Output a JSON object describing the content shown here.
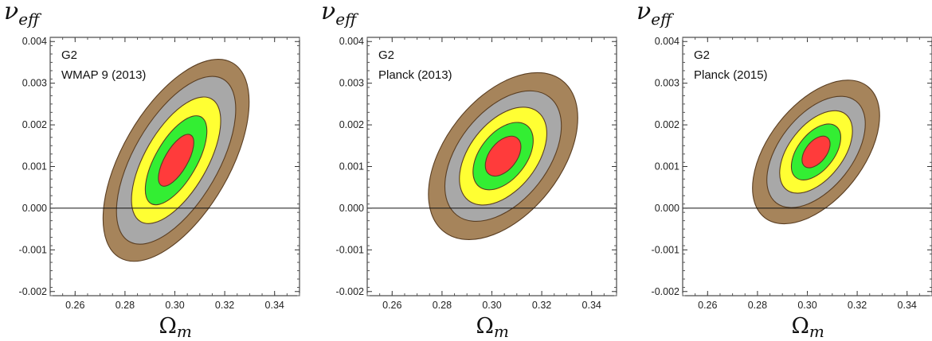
{
  "chart_data": [
    {
      "type": "contour",
      "ylabel": "ν",
      "ylabel_sub": "eff",
      "xlabel": "Ω",
      "xlabel_sub": "m",
      "annotation_lines": [
        "G2",
        "WMAP 9 (2013)"
      ],
      "xlim": [
        0.25,
        0.35
      ],
      "ylim": [
        -0.0021,
        0.0041
      ],
      "xticks": [
        "0.26",
        "0.28",
        "0.30",
        "0.32",
        "0.34"
      ],
      "xtick_values": [
        0.26,
        0.28,
        0.3,
        0.32,
        0.34
      ],
      "yticks": [
        "0.004",
        "0.003",
        "0.002",
        "0.001",
        "0.000",
        "-0.001",
        "-0.002"
      ],
      "ytick_values": [
        0.004,
        0.003,
        0.002,
        0.001,
        0.0,
        -0.001,
        -0.002
      ],
      "reference_line_y": 0.0,
      "best_fit": {
        "x": 0.3005,
        "y": 0.00115
      },
      "rotation_deg": -60,
      "contours": [
        {
          "level": 5,
          "color": "#a6845b",
          "semi_major": 0.0027,
          "semi_minor": 0.0215
        },
        {
          "level": 4,
          "color": "#a8a8a8",
          "semi_major": 0.00225,
          "semi_minor": 0.017
        },
        {
          "level": 3,
          "color": "#ffff33",
          "semi_major": 0.0017,
          "semi_minor": 0.0125
        },
        {
          "level": 2,
          "color": "#33ee33",
          "semi_major": 0.0012,
          "semi_minor": 0.0083
        },
        {
          "level": 1,
          "color": "#ff3b3b",
          "semi_major": 0.0007,
          "semi_minor": 0.0046
        }
      ]
    },
    {
      "type": "contour",
      "ylabel": "ν",
      "ylabel_sub": "eff",
      "xlabel": "Ω",
      "xlabel_sub": "m",
      "annotation_lines": [
        "G2",
        "Planck (2013)"
      ],
      "xlim": [
        0.25,
        0.35
      ],
      "ylim": [
        -0.0021,
        0.0041
      ],
      "xticks": [
        "0.26",
        "0.28",
        "0.30",
        "0.32",
        "0.34"
      ],
      "xtick_values": [
        0.26,
        0.28,
        0.3,
        0.32,
        0.34
      ],
      "yticks": [
        "0.004",
        "0.003",
        "0.002",
        "0.001",
        "0.000",
        "-0.001",
        "-0.002"
      ],
      "ytick_values": [
        0.004,
        0.003,
        0.002,
        0.001,
        0.0,
        -0.001,
        -0.002
      ],
      "reference_line_y": 0.0,
      "best_fit": {
        "x": 0.3045,
        "y": 0.00125
      },
      "rotation_deg": -52,
      "contours": [
        {
          "level": 5,
          "color": "#a6845b",
          "semi_major": 0.0023,
          "semi_minor": 0.0232
        },
        {
          "level": 4,
          "color": "#a8a8a8",
          "semi_major": 0.0018,
          "semi_minor": 0.018
        },
        {
          "level": 3,
          "color": "#ffff33",
          "semi_major": 0.00135,
          "semi_minor": 0.0135
        },
        {
          "level": 2,
          "color": "#33ee33",
          "semi_major": 0.00093,
          "semi_minor": 0.0093
        },
        {
          "level": 1,
          "color": "#ff3b3b",
          "semi_major": 0.00055,
          "semi_minor": 0.0055
        }
      ]
    },
    {
      "type": "contour",
      "ylabel": "ν",
      "ylabel_sub": "eff",
      "xlabel": "Ω",
      "xlabel_sub": "m",
      "annotation_lines": [
        "G2",
        "Planck (2015)"
      ],
      "xlim": [
        0.25,
        0.35
      ],
      "ylim": [
        -0.0021,
        0.0041
      ],
      "xticks": [
        "0.26",
        "0.28",
        "0.30",
        "0.32",
        "0.34"
      ],
      "xtick_values": [
        0.26,
        0.28,
        0.3,
        0.32,
        0.34
      ],
      "yticks": [
        "0.004",
        "0.003",
        "0.002",
        "0.001",
        "0.000",
        "-0.001",
        "-0.002"
      ],
      "ytick_values": [
        0.004,
        0.003,
        0.002,
        0.001,
        0.0,
        -0.001,
        -0.002
      ],
      "reference_line_y": 0.0,
      "best_fit": {
        "x": 0.3035,
        "y": 0.00135
      },
      "rotation_deg": -52,
      "contours": [
        {
          "level": 5,
          "color": "#a6845b",
          "semi_major": 0.002,
          "semi_minor": 0.019
        },
        {
          "level": 4,
          "color": "#a8a8a8",
          "semi_major": 0.00155,
          "semi_minor": 0.0147
        },
        {
          "level": 3,
          "color": "#ffff33",
          "semi_major": 0.00115,
          "semi_minor": 0.0108
        },
        {
          "level": 2,
          "color": "#33ee33",
          "semi_major": 0.00078,
          "semi_minor": 0.0073
        },
        {
          "level": 1,
          "color": "#ff3b3b",
          "semi_major": 0.00044,
          "semi_minor": 0.0042
        }
      ]
    }
  ]
}
